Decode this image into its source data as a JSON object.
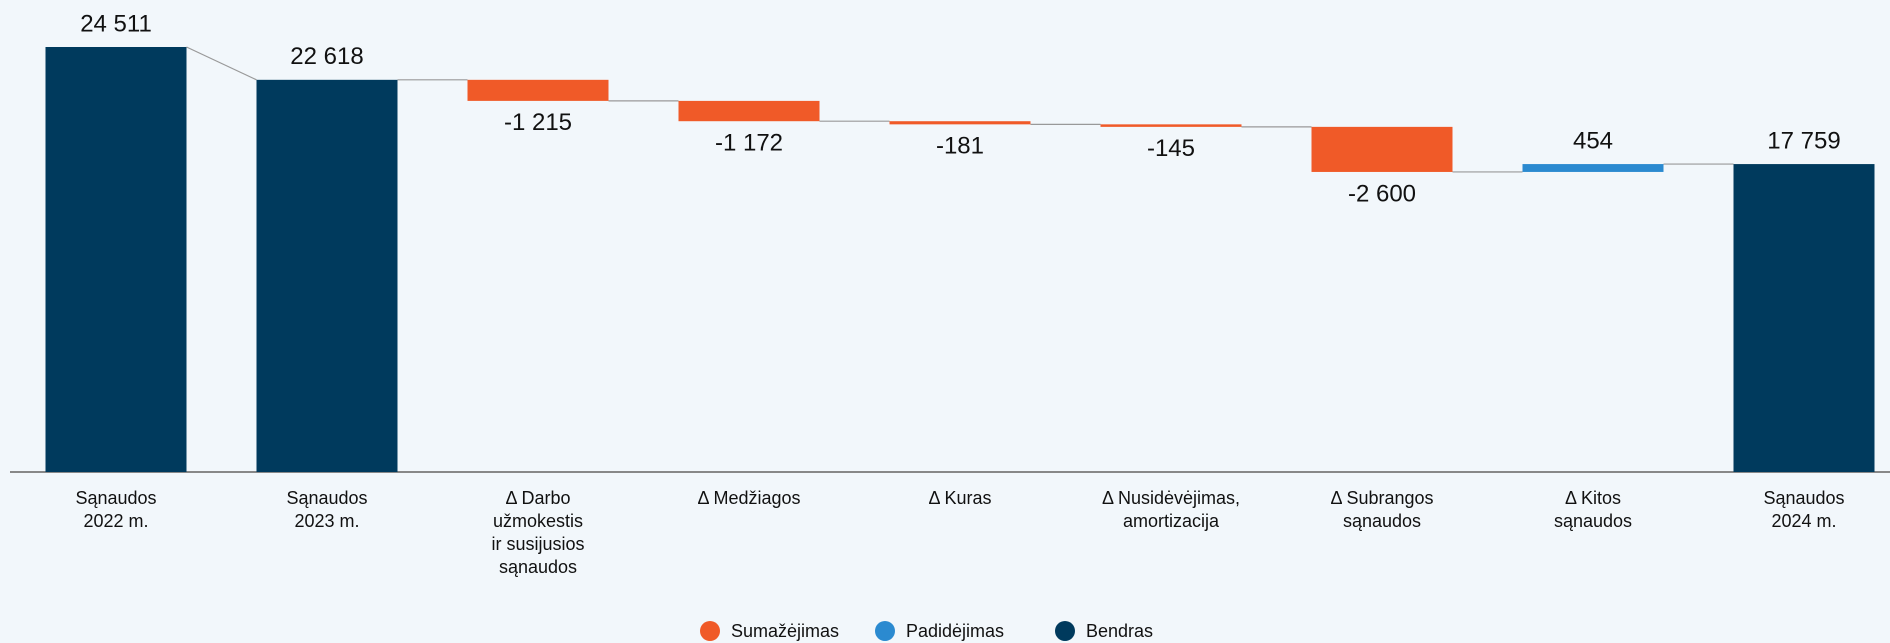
{
  "chart_data": {
    "type": "waterfall",
    "categories": [
      [
        "Sąnaudos",
        "2022 m."
      ],
      [
        "Sąnaudos",
        "2023 m."
      ],
      [
        "Δ Darbo",
        "užmokestis",
        "ir susijusios",
        "sąnaudos"
      ],
      [
        "Δ Medžiagos"
      ],
      [
        "Δ Kuras"
      ],
      [
        "Δ Nusidėvėjimas,",
        "amortizacija"
      ],
      [
        "Δ Subrangos",
        "sąnaudos"
      ],
      [
        "Δ Kitos",
        "sąnaudos"
      ],
      [
        "Sąnaudos",
        "2024 m."
      ]
    ],
    "values": [
      24511,
      22618,
      -1215,
      -1172,
      -181,
      -145,
      -2600,
      454,
      17759
    ],
    "value_labels": [
      "24 511",
      "22 618",
      "-1 215",
      "-1 172",
      "-181",
      "-145",
      "-2 600",
      "454",
      "17 759"
    ],
    "measures": [
      "total",
      "total",
      "relative",
      "relative",
      "relative",
      "relative",
      "relative",
      "relative",
      "total"
    ],
    "legend": [
      {
        "name": "Sumažėjimas",
        "color": "#f05a28"
      },
      {
        "name": "Padidėjimas",
        "color": "#2b8ad0"
      },
      {
        "name": "Bendras",
        "color": "#003a5d"
      }
    ]
  }
}
